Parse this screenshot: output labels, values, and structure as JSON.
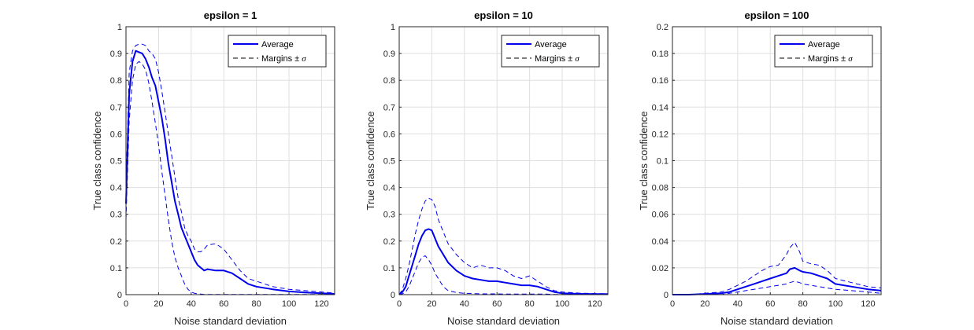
{
  "legend_symbols": {
    "sigma": "σ"
  },
  "chart_data": [
    {
      "type": "line",
      "title": "epsilon = 1",
      "xlabel": "Noise standard deviation",
      "ylabel": "True class confidence",
      "xlim": [
        0,
        128
      ],
      "ylim": [
        0,
        1
      ],
      "xticks": [
        0,
        20,
        40,
        60,
        80,
        100,
        120
      ],
      "yticks": [
        0,
        0.1,
        0.2,
        0.3,
        0.4,
        0.5,
        0.6,
        0.7,
        0.8,
        0.9,
        1
      ],
      "ytick_labels": [
        "0",
        "0.1",
        "0.2",
        "0.3",
        "0.4",
        "0.5",
        "0.6",
        "0.7",
        "0.8",
        "0.9",
        "1"
      ],
      "grid": true,
      "legend_position": "top-right",
      "series": [
        {
          "name": "Average",
          "style": "solid",
          "color": "#0000ee",
          "x": [
            0,
            2,
            4,
            6,
            8,
            10,
            12,
            14,
            16,
            18,
            20,
            22,
            24,
            26,
            28,
            30,
            32,
            34,
            36,
            38,
            40,
            42,
            44,
            46,
            48,
            50,
            55,
            60,
            65,
            70,
            75,
            80,
            90,
            100,
            110,
            120,
            128
          ],
          "y": [
            0.34,
            0.75,
            0.87,
            0.91,
            0.905,
            0.9,
            0.88,
            0.85,
            0.81,
            0.78,
            0.72,
            0.66,
            0.58,
            0.49,
            0.42,
            0.35,
            0.3,
            0.25,
            0.22,
            0.19,
            0.16,
            0.13,
            0.11,
            0.1,
            0.09,
            0.095,
            0.09,
            0.09,
            0.08,
            0.06,
            0.04,
            0.03,
            0.02,
            0.012,
            0.008,
            0.005,
            0.003
          ]
        },
        {
          "name": "Margins ± σ",
          "legend_sigma": true,
          "style": "dashed",
          "color": "#0000ee",
          "x": [
            0,
            2,
            4,
            6,
            8,
            10,
            12,
            14,
            16,
            18,
            20,
            22,
            24,
            26,
            28,
            30,
            32,
            34,
            36,
            38,
            40,
            42,
            44,
            46,
            48,
            50,
            55,
            60,
            65,
            70,
            75,
            80,
            90,
            100,
            110,
            120,
            128
          ],
          "y": [
            0.4,
            0.83,
            0.91,
            0.93,
            0.935,
            0.935,
            0.93,
            0.91,
            0.9,
            0.88,
            0.83,
            0.76,
            0.68,
            0.6,
            0.52,
            0.44,
            0.36,
            0.31,
            0.25,
            0.22,
            0.2,
            0.17,
            0.16,
            0.16,
            0.17,
            0.185,
            0.19,
            0.17,
            0.13,
            0.09,
            0.06,
            0.05,
            0.03,
            0.02,
            0.015,
            0.01,
            0.006
          ]
        },
        {
          "name": "",
          "style": "dashed",
          "color": "#0000ee",
          "x": [
            0,
            2,
            4,
            6,
            8,
            10,
            12,
            14,
            16,
            18,
            20,
            22,
            24,
            26,
            28,
            30,
            32,
            34,
            36,
            38,
            40,
            42,
            44,
            46,
            48,
            50,
            55,
            60,
            65,
            70,
            75,
            80,
            90,
            100,
            110,
            120,
            128
          ],
          "y": [
            0.28,
            0.65,
            0.8,
            0.86,
            0.87,
            0.86,
            0.84,
            0.79,
            0.72,
            0.64,
            0.56,
            0.46,
            0.37,
            0.28,
            0.2,
            0.14,
            0.1,
            0.07,
            0.04,
            0.02,
            0.01,
            0.005,
            0.003,
            0.002,
            0.001,
            0.001,
            0.001,
            0.001,
            0.001,
            0.001,
            0.001,
            0.001,
            0.001,
            0.001,
            0.001,
            0.001,
            0.001
          ]
        }
      ]
    },
    {
      "type": "line",
      "title": "epsilon = 10",
      "xlabel": "Noise standard deviation",
      "ylabel": "True class confidence",
      "xlim": [
        0,
        128
      ],
      "ylim": [
        0,
        1
      ],
      "xticks": [
        0,
        20,
        40,
        60,
        80,
        100,
        120
      ],
      "yticks": [
        0,
        0.1,
        0.2,
        0.3,
        0.4,
        0.5,
        0.6,
        0.7,
        0.8,
        0.9,
        1
      ],
      "ytick_labels": [
        "0",
        "0.1",
        "0.2",
        "0.3",
        "0.4",
        "0.5",
        "0.6",
        "0.7",
        "0.8",
        "0.9",
        "1"
      ],
      "grid": true,
      "legend_position": "top-right",
      "series": [
        {
          "name": "Average",
          "style": "solid",
          "color": "#0000ee",
          "x": [
            0,
            2,
            4,
            6,
            8,
            10,
            12,
            14,
            16,
            18,
            20,
            22,
            24,
            26,
            28,
            30,
            35,
            40,
            45,
            50,
            55,
            60,
            65,
            70,
            75,
            80,
            85,
            90,
            95,
            100,
            110,
            120,
            128
          ],
          "y": [
            0,
            0.01,
            0.03,
            0.07,
            0.11,
            0.15,
            0.19,
            0.22,
            0.24,
            0.245,
            0.24,
            0.21,
            0.18,
            0.16,
            0.14,
            0.12,
            0.09,
            0.07,
            0.06,
            0.055,
            0.05,
            0.05,
            0.045,
            0.04,
            0.035,
            0.035,
            0.03,
            0.02,
            0.01,
            0.005,
            0.003,
            0.002,
            0.002
          ]
        },
        {
          "name": "Margins ± σ",
          "legend_sigma": true,
          "style": "dashed",
          "color": "#0000ee",
          "x": [
            0,
            2,
            4,
            6,
            8,
            10,
            12,
            14,
            16,
            18,
            20,
            22,
            24,
            26,
            28,
            30,
            35,
            40,
            45,
            50,
            55,
            60,
            65,
            70,
            75,
            80,
            85,
            90,
            95,
            100,
            110,
            120,
            128
          ],
          "y": [
            0,
            0.02,
            0.06,
            0.11,
            0.17,
            0.23,
            0.28,
            0.32,
            0.35,
            0.36,
            0.355,
            0.33,
            0.28,
            0.25,
            0.22,
            0.19,
            0.15,
            0.12,
            0.1,
            0.11,
            0.1,
            0.1,
            0.09,
            0.07,
            0.06,
            0.07,
            0.05,
            0.03,
            0.015,
            0.01,
            0.006,
            0.004,
            0.003
          ]
        },
        {
          "name": "",
          "style": "dashed",
          "color": "#0000ee",
          "x": [
            0,
            2,
            4,
            6,
            8,
            10,
            12,
            14,
            16,
            18,
            20,
            22,
            24,
            26,
            28,
            30,
            35,
            40,
            45,
            50,
            55,
            60,
            65,
            70,
            75,
            80,
            85,
            90,
            95,
            100,
            110,
            120,
            128
          ],
          "y": [
            0,
            0.003,
            0.01,
            0.03,
            0.06,
            0.09,
            0.12,
            0.14,
            0.145,
            0.13,
            0.11,
            0.08,
            0.06,
            0.04,
            0.025,
            0.015,
            0.008,
            0.005,
            0.004,
            0.003,
            0.003,
            0.003,
            0.002,
            0.002,
            0.002,
            0.002,
            0.002,
            0.002,
            0.001,
            0.001,
            0.001,
            0.001,
            0.001
          ]
        }
      ]
    },
    {
      "type": "line",
      "title": "epsilon = 100",
      "xlabel": "Noise standard deviation",
      "ylabel": "True class confidence",
      "xlim": [
        0,
        128
      ],
      "ylim": [
        0,
        0.2
      ],
      "xticks": [
        0,
        20,
        40,
        60,
        80,
        100,
        120
      ],
      "yticks": [
        0,
        0.02,
        0.04,
        0.06,
        0.08,
        0.1,
        0.12,
        0.14,
        0.16,
        0.18,
        0.2
      ],
      "ytick_labels": [
        "0",
        "0.02",
        "0.04",
        "0.06",
        "0.08",
        "0.1",
        "0.12",
        "0.14",
        "0.16",
        "0.18",
        "0.2"
      ],
      "grid": true,
      "legend_position": "top-right",
      "series": [
        {
          "name": "Average",
          "style": "solid",
          "color": "#0000ee",
          "x": [
            0,
            10,
            20,
            30,
            35,
            40,
            45,
            50,
            55,
            60,
            65,
            70,
            72,
            75,
            78,
            80,
            85,
            90,
            95,
            100,
            110,
            120,
            128
          ],
          "y": [
            0,
            0,
            0.0005,
            0.001,
            0.002,
            0.004,
            0.006,
            0.008,
            0.01,
            0.012,
            0.014,
            0.016,
            0.019,
            0.02,
            0.018,
            0.017,
            0.016,
            0.014,
            0.012,
            0.008,
            0.006,
            0.004,
            0.003
          ]
        },
        {
          "name": "Margins ± σ",
          "legend_sigma": true,
          "style": "dashed",
          "color": "#0000ee",
          "x": [
            0,
            10,
            20,
            30,
            35,
            40,
            45,
            50,
            55,
            60,
            65,
            70,
            72,
            75,
            78,
            80,
            85,
            90,
            95,
            100,
            110,
            120,
            128
          ],
          "y": [
            0,
            0,
            0.001,
            0.002,
            0.004,
            0.007,
            0.01,
            0.014,
            0.018,
            0.021,
            0.022,
            0.03,
            0.035,
            0.039,
            0.032,
            0.025,
            0.023,
            0.022,
            0.018,
            0.012,
            0.009,
            0.006,
            0.005
          ]
        },
        {
          "name": "",
          "style": "dashed",
          "color": "#0000ee",
          "x": [
            0,
            10,
            20,
            30,
            35,
            40,
            45,
            50,
            55,
            60,
            65,
            70,
            72,
            75,
            78,
            80,
            85,
            90,
            95,
            100,
            110,
            120,
            128
          ],
          "y": [
            0,
            0,
            0,
            0,
            0.001,
            0.002,
            0.003,
            0.004,
            0.005,
            0.006,
            0.007,
            0.008,
            0.009,
            0.01,
            0.009,
            0.008,
            0.007,
            0.006,
            0.005,
            0.004,
            0.003,
            0.002,
            0.001
          ]
        }
      ]
    }
  ]
}
